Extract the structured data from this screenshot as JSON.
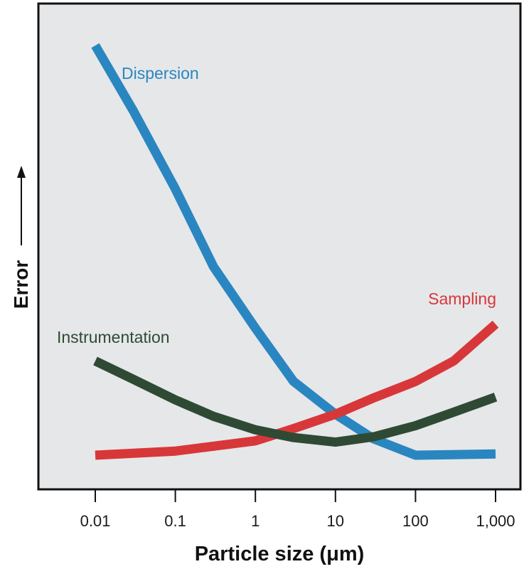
{
  "chart_data": {
    "type": "line",
    "xlabel": "Particle size (μm)",
    "ylabel": "Error",
    "x_scale": "log",
    "x_ticks": [
      0.01,
      0.1,
      1,
      10,
      100,
      1000
    ],
    "x_tick_labels": [
      "0.01",
      "0.1",
      "1",
      "10",
      "100",
      "1,000"
    ],
    "y_ticks_shown": false,
    "ylim": [
      0,
      10
    ],
    "grid": false,
    "background": "#e6e7e9",
    "series": [
      {
        "name": "Dispersion",
        "color": "#2a86c0",
        "points": [
          [
            0.01,
            10.0
          ],
          [
            0.03,
            8.4
          ],
          [
            0.1,
            6.5
          ],
          [
            0.3,
            4.6
          ],
          [
            1,
            3.1
          ],
          [
            3,
            1.8
          ],
          [
            10,
            1.0
          ],
          [
            30,
            0.4
          ],
          [
            100,
            0.0
          ],
          [
            1000,
            0.03
          ]
        ]
      },
      {
        "name": "Sampling",
        "color": "#d8373a",
        "points": [
          [
            0.01,
            0.0
          ],
          [
            0.1,
            0.1
          ],
          [
            1,
            0.35
          ],
          [
            3,
            0.65
          ],
          [
            10,
            1.0
          ],
          [
            30,
            1.4
          ],
          [
            100,
            1.8
          ],
          [
            300,
            2.3
          ],
          [
            1000,
            3.2
          ]
        ]
      },
      {
        "name": "Instrumentation",
        "color": "#2f4a34",
        "points": [
          [
            0.01,
            2.3
          ],
          [
            0.03,
            1.85
          ],
          [
            0.1,
            1.35
          ],
          [
            0.3,
            0.95
          ],
          [
            1,
            0.62
          ],
          [
            3,
            0.43
          ],
          [
            10,
            0.32
          ],
          [
            30,
            0.45
          ],
          [
            100,
            0.72
          ],
          [
            300,
            1.05
          ],
          [
            1000,
            1.42
          ]
        ]
      }
    ],
    "annotations": [
      {
        "text": "Dispersion",
        "color": "#2a86c0"
      },
      {
        "text": "Sampling",
        "color": "#d8373a"
      },
      {
        "text": "Instrumentation",
        "color": "#2f4a34"
      }
    ]
  }
}
